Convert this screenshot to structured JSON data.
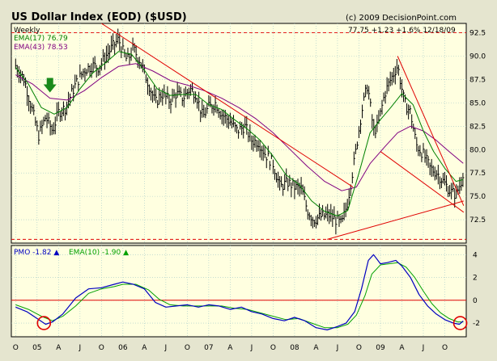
{
  "chart_data": {
    "type": "line",
    "title": "US Dollar Index (EOD) ($USD)",
    "credit": "(c) 2009 DecisionPoint.com",
    "quote": "77.75  +1.23  +1.6%  12/18/09",
    "colors": {
      "background": "#FFFFE0",
      "frame_bg": "#E5E5CF",
      "price": "#000000",
      "ema17": "#008000",
      "ema43": "#800080",
      "pmo": "#0000C0",
      "pmo_ema": "#00A000",
      "trendline": "#E00000",
      "grid": "#A0C8C8",
      "arrow": "#1A8A1A"
    },
    "x_labels": [
      "O",
      "05",
      "A",
      "J",
      "O",
      "06",
      "A",
      "J",
      "O",
      "07",
      "A",
      "J",
      "O",
      "08",
      "A",
      "J",
      "O",
      "09",
      "A",
      "J",
      "O"
    ],
    "x_label_dates": [
      2004.75,
      2005.0,
      2005.25,
      2005.5,
      2005.75,
      2006.0,
      2006.25,
      2006.5,
      2006.75,
      2007.0,
      2007.25,
      2007.5,
      2007.75,
      2008.0,
      2008.25,
      2008.5,
      2008.75,
      2009.0,
      2009.25,
      2009.5,
      2009.75
    ],
    "x_range": [
      2004.7,
      2010.0
    ],
    "price_panel": {
      "period_label": "Weekly",
      "legend": [
        {
          "name": "EMA(17)",
          "value": "76.79",
          "color": "#008000"
        },
        {
          "name": "EMA(43)",
          "value": "78.53",
          "color": "#800080"
        }
      ],
      "y_range": [
        70,
        93.5
      ],
      "y_ticks": [
        "92.5",
        "90.0",
        "87.5",
        "85.0",
        "82.5",
        "80.0",
        "77.5",
        "75.0",
        "72.5"
      ],
      "y_tick_values": [
        92.5,
        90,
        87.5,
        85,
        82.5,
        80,
        77.5,
        75,
        72.5
      ],
      "price_series": [
        [
          2004.75,
          89.0
        ],
        [
          2004.85,
          87.5
        ],
        [
          2004.95,
          84.0
        ],
        [
          2005.02,
          81.5
        ],
        [
          2005.1,
          83.5
        ],
        [
          2005.18,
          82.0
        ],
        [
          2005.25,
          84.0
        ],
        [
          2005.33,
          84.5
        ],
        [
          2005.45,
          87.0
        ],
        [
          2005.55,
          88.5
        ],
        [
          2005.65,
          89.0
        ],
        [
          2005.72,
          88.8
        ],
        [
          2005.8,
          90.0
        ],
        [
          2005.88,
          91.0
        ],
        [
          2005.95,
          91.8
        ],
        [
          2006.0,
          90.5
        ],
        [
          2006.05,
          89.5
        ],
        [
          2006.12,
          90.8
        ],
        [
          2006.2,
          89.5
        ],
        [
          2006.28,
          87.5
        ],
        [
          2006.38,
          85.0
        ],
        [
          2006.45,
          86.0
        ],
        [
          2006.55,
          85.2
        ],
        [
          2006.62,
          86.0
        ],
        [
          2006.7,
          85.5
        ],
        [
          2006.78,
          86.5
        ],
        [
          2006.85,
          86.0
        ],
        [
          2006.93,
          83.5
        ],
        [
          2007.0,
          84.5
        ],
        [
          2007.08,
          85.0
        ],
        [
          2007.15,
          83.8
        ],
        [
          2007.25,
          83.0
        ],
        [
          2007.33,
          82.0
        ],
        [
          2007.42,
          82.5
        ],
        [
          2007.5,
          81.0
        ],
        [
          2007.58,
          80.8
        ],
        [
          2007.66,
          79.5
        ],
        [
          2007.75,
          78.5
        ],
        [
          2007.83,
          76.0
        ],
        [
          2007.92,
          76.5
        ],
        [
          2008.0,
          76.0
        ],
        [
          2008.08,
          75.8
        ],
        [
          2008.15,
          73.5
        ],
        [
          2008.22,
          72.5
        ],
        [
          2008.3,
          72.8
        ],
        [
          2008.4,
          73.0
        ],
        [
          2008.48,
          72.5
        ],
        [
          2008.55,
          72.0
        ],
        [
          2008.62,
          74.5
        ],
        [
          2008.7,
          79.0
        ],
        [
          2008.78,
          84.0
        ],
        [
          2008.85,
          87.0
        ],
        [
          2008.92,
          82.0
        ],
        [
          2008.97,
          82.5
        ],
        [
          2009.05,
          86.0
        ],
        [
          2009.12,
          87.5
        ],
        [
          2009.2,
          89.0
        ],
        [
          2009.28,
          85.0
        ],
        [
          2009.35,
          84.0
        ],
        [
          2009.42,
          80.5
        ],
        [
          2009.5,
          79.5
        ],
        [
          2009.58,
          78.0
        ],
        [
          2009.66,
          77.5
        ],
        [
          2009.74,
          76.5
        ],
        [
          2009.82,
          75.5
        ],
        [
          2009.88,
          75.2
        ],
        [
          2009.94,
          76.5
        ],
        [
          2009.965,
          77.75
        ]
      ],
      "ema17_series": [
        [
          2004.75,
          88.8
        ],
        [
          2004.9,
          87.0
        ],
        [
          2005.05,
          84.5
        ],
        [
          2005.2,
          83.8
        ],
        [
          2005.35,
          84.5
        ],
        [
          2005.5,
          86.5
        ],
        [
          2005.65,
          88.2
        ],
        [
          2005.8,
          89.3
        ],
        [
          2005.95,
          90.5
        ],
        [
          2006.1,
          90.2
        ],
        [
          2006.25,
          88.5
        ],
        [
          2006.4,
          86.5
        ],
        [
          2006.55,
          85.8
        ],
        [
          2006.7,
          85.9
        ],
        [
          2006.85,
          85.9
        ],
        [
          2007.0,
          84.8
        ],
        [
          2007.15,
          84.3
        ],
        [
          2007.3,
          83.2
        ],
        [
          2007.45,
          82.2
        ],
        [
          2007.6,
          81.0
        ],
        [
          2007.75,
          79.3
        ],
        [
          2007.9,
          77.3
        ],
        [
          2008.05,
          76.3
        ],
        [
          2008.2,
          74.5
        ],
        [
          2008.35,
          73.4
        ],
        [
          2008.5,
          72.9
        ],
        [
          2008.62,
          73.5
        ],
        [
          2008.75,
          77.5
        ],
        [
          2008.88,
          81.8
        ],
        [
          2009.0,
          83.2
        ],
        [
          2009.12,
          84.5
        ],
        [
          2009.25,
          86.0
        ],
        [
          2009.38,
          84.8
        ],
        [
          2009.5,
          82.0
        ],
        [
          2009.62,
          79.8
        ],
        [
          2009.75,
          78.0
        ],
        [
          2009.88,
          76.6
        ],
        [
          2009.965,
          76.79
        ]
      ],
      "ema43_series": [
        [
          2004.75,
          88.0
        ],
        [
          2004.95,
          87.0
        ],
        [
          2005.15,
          85.5
        ],
        [
          2005.35,
          85.3
        ],
        [
          2005.55,
          86.3
        ],
        [
          2005.75,
          87.7
        ],
        [
          2005.95,
          88.9
        ],
        [
          2006.15,
          89.2
        ],
        [
          2006.35,
          88.4
        ],
        [
          2006.55,
          87.4
        ],
        [
          2006.75,
          86.9
        ],
        [
          2006.95,
          86.3
        ],
        [
          2007.15,
          85.5
        ],
        [
          2007.35,
          84.5
        ],
        [
          2007.55,
          83.3
        ],
        [
          2007.75,
          81.8
        ],
        [
          2007.95,
          80.0
        ],
        [
          2008.15,
          78.2
        ],
        [
          2008.35,
          76.6
        ],
        [
          2008.55,
          75.6
        ],
        [
          2008.72,
          76.0
        ],
        [
          2008.88,
          78.5
        ],
        [
          2009.05,
          80.3
        ],
        [
          2009.2,
          81.8
        ],
        [
          2009.35,
          82.5
        ],
        [
          2009.5,
          82.0
        ],
        [
          2009.65,
          81.0
        ],
        [
          2009.8,
          79.8
        ],
        [
          2009.965,
          78.53
        ]
      ],
      "trendlines": [
        [
          [
            2005.75,
            93.5
          ],
          [
            2008.68,
            76.0
          ]
        ],
        [
          [
            2009.2,
            90.0
          ],
          [
            2009.97,
            74.0
          ]
        ],
        [
          [
            2009.0,
            79.8
          ],
          [
            2009.97,
            73.3
          ]
        ],
        [
          [
            2008.38,
            70.4
          ],
          [
            2009.97,
            74.5
          ]
        ]
      ],
      "dashed_levels": [
        92.5,
        70.4
      ],
      "markers": [
        {
          "type": "down-arrow",
          "x": 2005.15,
          "y": 86.8
        }
      ]
    },
    "pmo_panel": {
      "legend": [
        {
          "name": "PMO",
          "value": "-1.82",
          "color": "#0000C0"
        },
        {
          "name": "EMA(10)",
          "value": "-1.90",
          "color": "#00A000"
        }
      ],
      "y_range": [
        -3.2,
        4.8
      ],
      "y_ticks": [
        "4",
        "2",
        "0",
        "-2"
      ],
      "y_tick_values": [
        4,
        2,
        0,
        -2
      ],
      "zero_line_color": "#E00000",
      "pmo_series": [
        [
          2004.75,
          -0.6
        ],
        [
          2004.88,
          -1.0
        ],
        [
          2005.0,
          -1.6
        ],
        [
          2005.1,
          -2.1
        ],
        [
          2005.18,
          -1.9
        ],
        [
          2005.3,
          -1.2
        ],
        [
          2005.45,
          0.2
        ],
        [
          2005.6,
          1.0
        ],
        [
          2005.75,
          1.1
        ],
        [
          2005.9,
          1.4
        ],
        [
          2006.0,
          1.6
        ],
        [
          2006.12,
          1.4
        ],
        [
          2006.25,
          1.0
        ],
        [
          2006.38,
          -0.2
        ],
        [
          2006.5,
          -0.6
        ],
        [
          2006.62,
          -0.5
        ],
        [
          2006.75,
          -0.4
        ],
        [
          2006.88,
          -0.6
        ],
        [
          2007.0,
          -0.4
        ],
        [
          2007.12,
          -0.5
        ],
        [
          2007.25,
          -0.8
        ],
        [
          2007.38,
          -0.6
        ],
        [
          2007.5,
          -1.0
        ],
        [
          2007.62,
          -1.2
        ],
        [
          2007.75,
          -1.6
        ],
        [
          2007.88,
          -1.8
        ],
        [
          2008.0,
          -1.5
        ],
        [
          2008.12,
          -1.8
        ],
        [
          2008.25,
          -2.4
        ],
        [
          2008.38,
          -2.6
        ],
        [
          2008.5,
          -2.3
        ],
        [
          2008.6,
          -2.0
        ],
        [
          2008.7,
          -1.0
        ],
        [
          2008.78,
          1.0
        ],
        [
          2008.86,
          3.5
        ],
        [
          2008.92,
          4.0
        ],
        [
          2009.0,
          3.2
        ],
        [
          2009.08,
          3.3
        ],
        [
          2009.18,
          3.5
        ],
        [
          2009.25,
          3.0
        ],
        [
          2009.35,
          2.0
        ],
        [
          2009.45,
          0.5
        ],
        [
          2009.55,
          -0.5
        ],
        [
          2009.65,
          -1.2
        ],
        [
          2009.75,
          -1.7
        ],
        [
          2009.85,
          -2.0
        ],
        [
          2009.92,
          -2.1
        ],
        [
          2009.965,
          -1.82
        ]
      ],
      "pmo_ema_series": [
        [
          2004.75,
          -0.4
        ],
        [
          2004.9,
          -0.8
        ],
        [
          2005.05,
          -1.4
        ],
        [
          2005.18,
          -1.8
        ],
        [
          2005.3,
          -1.4
        ],
        [
          2005.45,
          -0.5
        ],
        [
          2005.6,
          0.6
        ],
        [
          2005.75,
          1.0
        ],
        [
          2005.9,
          1.2
        ],
        [
          2006.0,
          1.4
        ],
        [
          2006.15,
          1.4
        ],
        [
          2006.3,
          0.9
        ],
        [
          2006.42,
          0.1
        ],
        [
          2006.55,
          -0.4
        ],
        [
          2006.7,
          -0.5
        ],
        [
          2006.85,
          -0.5
        ],
        [
          2007.0,
          -0.5
        ],
        [
          2007.15,
          -0.5
        ],
        [
          2007.3,
          -0.7
        ],
        [
          2007.45,
          -0.8
        ],
        [
          2007.6,
          -1.1
        ],
        [
          2007.75,
          -1.4
        ],
        [
          2007.9,
          -1.7
        ],
        [
          2008.05,
          -1.6
        ],
        [
          2008.2,
          -2.0
        ],
        [
          2008.35,
          -2.4
        ],
        [
          2008.5,
          -2.4
        ],
        [
          2008.62,
          -2.1
        ],
        [
          2008.72,
          -1.3
        ],
        [
          2008.82,
          0.4
        ],
        [
          2008.9,
          2.3
        ],
        [
          2009.0,
          3.1
        ],
        [
          2009.1,
          3.2
        ],
        [
          2009.2,
          3.3
        ],
        [
          2009.3,
          2.9
        ],
        [
          2009.4,
          2.0
        ],
        [
          2009.5,
          0.8
        ],
        [
          2009.6,
          -0.3
        ],
        [
          2009.7,
          -1.1
        ],
        [
          2009.8,
          -1.6
        ],
        [
          2009.9,
          -1.9
        ],
        [
          2009.965,
          -1.9
        ]
      ],
      "markers": [
        {
          "type": "circle",
          "x": 2005.08,
          "y": -2.0
        },
        {
          "type": "circle",
          "x": 2009.93,
          "y": -2.0
        }
      ]
    }
  }
}
